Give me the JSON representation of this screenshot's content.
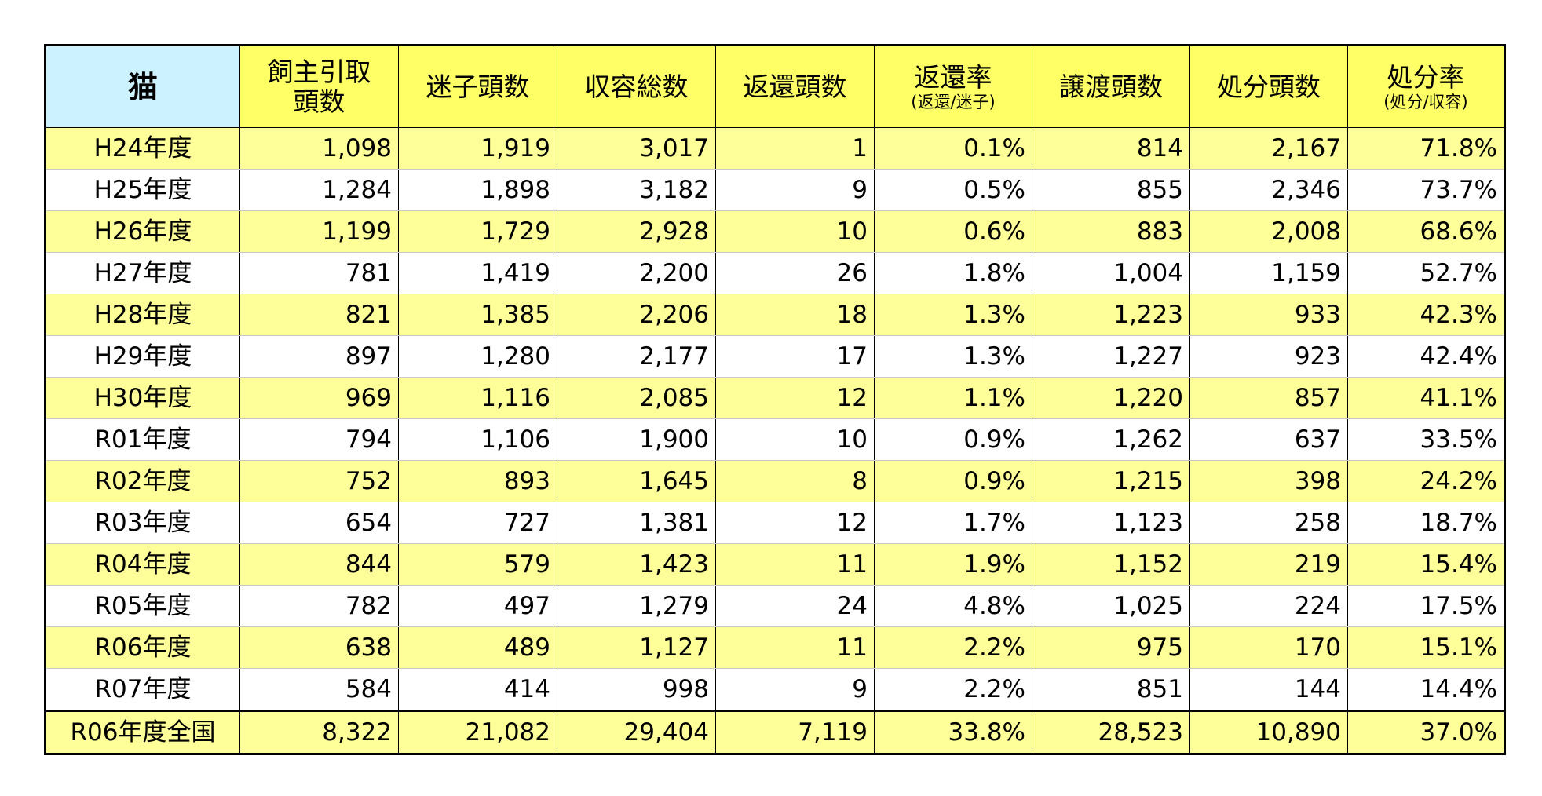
{
  "table": {
    "corner_label": "猫",
    "columns": [
      {
        "label": "飼主引取頭数",
        "sub": ""
      },
      {
        "label": "迷子頭数",
        "sub": ""
      },
      {
        "label": "収容総数",
        "sub": ""
      },
      {
        "label": "返還頭数",
        "sub": ""
      },
      {
        "label": "返還率",
        "sub": "(返還/迷子)"
      },
      {
        "label": "譲渡頭数",
        "sub": ""
      },
      {
        "label": "処分頭数",
        "sub": ""
      },
      {
        "label": "処分率",
        "sub": "(処分/収容)"
      }
    ],
    "rows": [
      {
        "year": "H24年度",
        "values": [
          "1,098",
          "1,919",
          "3,017",
          "1",
          "0.1%",
          "814",
          "2,167",
          "71.8%"
        ]
      },
      {
        "year": "H25年度",
        "values": [
          "1,284",
          "1,898",
          "3,182",
          "9",
          "0.5%",
          "855",
          "2,346",
          "73.7%"
        ]
      },
      {
        "year": "H26年度",
        "values": [
          "1,199",
          "1,729",
          "2,928",
          "10",
          "0.6%",
          "883",
          "2,008",
          "68.6%"
        ]
      },
      {
        "year": "H27年度",
        "values": [
          "781",
          "1,419",
          "2,200",
          "26",
          "1.8%",
          "1,004",
          "1,159",
          "52.7%"
        ]
      },
      {
        "year": "H28年度",
        "values": [
          "821",
          "1,385",
          "2,206",
          "18",
          "1.3%",
          "1,223",
          "933",
          "42.3%"
        ]
      },
      {
        "year": "H29年度",
        "values": [
          "897",
          "1,280",
          "2,177",
          "17",
          "1.3%",
          "1,227",
          "923",
          "42.4%"
        ]
      },
      {
        "year": "H30年度",
        "values": [
          "969",
          "1,116",
          "2,085",
          "12",
          "1.1%",
          "1,220",
          "857",
          "41.1%"
        ]
      },
      {
        "year": "R01年度",
        "values": [
          "794",
          "1,106",
          "1,900",
          "10",
          "0.9%",
          "1,262",
          "637",
          "33.5%"
        ]
      },
      {
        "year": "R02年度",
        "values": [
          "752",
          "893",
          "1,645",
          "8",
          "0.9%",
          "1,215",
          "398",
          "24.2%"
        ]
      },
      {
        "year": "R03年度",
        "values": [
          "654",
          "727",
          "1,381",
          "12",
          "1.7%",
          "1,123",
          "258",
          "18.7%"
        ]
      },
      {
        "year": "R04年度",
        "values": [
          "844",
          "579",
          "1,423",
          "11",
          "1.9%",
          "1,152",
          "219",
          "15.4%"
        ]
      },
      {
        "year": "R05年度",
        "values": [
          "782",
          "497",
          "1,279",
          "24",
          "4.8%",
          "1,025",
          "224",
          "17.5%"
        ]
      },
      {
        "year": "R06年度",
        "values": [
          "638",
          "489",
          "1,127",
          "11",
          "2.2%",
          "975",
          "170",
          "15.1%"
        ]
      },
      {
        "year": "R07年度",
        "values": [
          "584",
          "414",
          "998",
          "9",
          "2.2%",
          "851",
          "144",
          "14.4%"
        ]
      }
    ],
    "total": {
      "label": "R06年度全国",
      "values": [
        "8,322",
        "21,082",
        "29,404",
        "7,119",
        "33.8%",
        "28,523",
        "10,890",
        "37.0%"
      ]
    }
  },
  "colors": {
    "corner_bg": "#ccf2ff",
    "header_bg": "#ffff66",
    "stripe_bg": "#ffff99",
    "plain_bg": "#ffffff",
    "border": "#000000"
  }
}
